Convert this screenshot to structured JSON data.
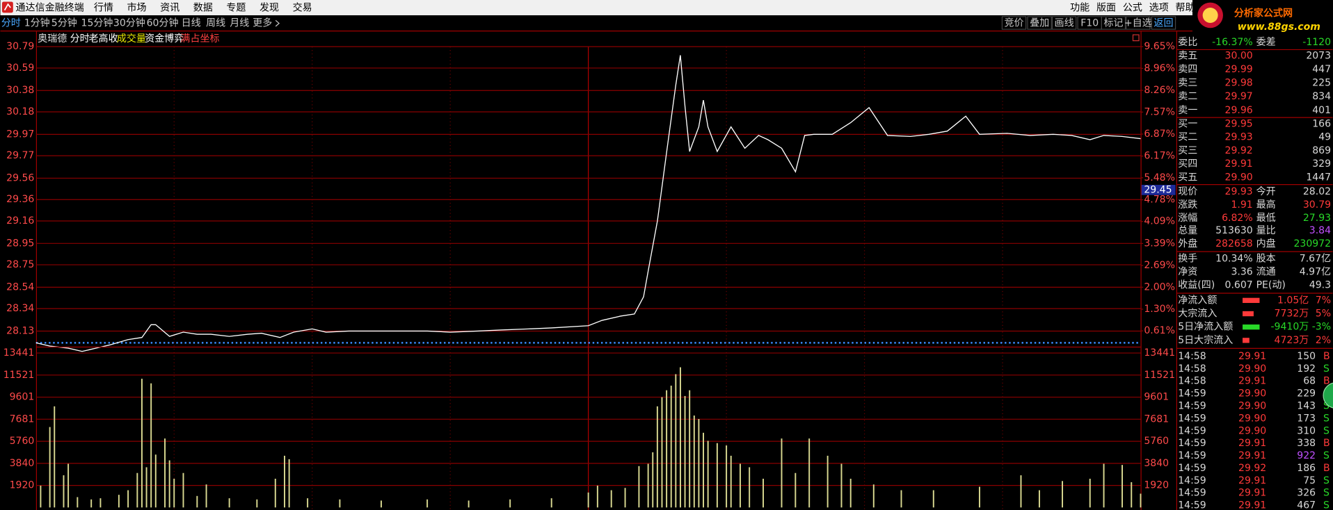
{
  "menu": {
    "app_title": "通达信金融终端",
    "items": [
      "行情",
      "市场",
      "资讯",
      "数据",
      "专题",
      "发现",
      "交易"
    ],
    "right_items": [
      "功能",
      "版面",
      "公式",
      "选项",
      "帮助"
    ],
    "watermark": {
      "name": "分析家公式网",
      "url": "www.88gs.com"
    }
  },
  "toolbar": {
    "periods": [
      "分时",
      "1分钟",
      "5分钟",
      "15分钟",
      "30分钟",
      "60分钟",
      "日线",
      "周线",
      "月线",
      "更多"
    ],
    "tools": [
      "竞价",
      "叠加",
      "画线",
      "F10",
      "标记",
      "+自选",
      "返回"
    ]
  },
  "chart": {
    "stock": "奥瑞德",
    "tabs": [
      "分时",
      "老高收",
      "成交量",
      "资金博弈",
      "满占坐标"
    ],
    "xlim": [
      0,
      240
    ],
    "ylim": [
      28.02,
      30.79
    ],
    "price_ticks": [
      30.79,
      30.59,
      30.38,
      30.18,
      29.97,
      29.77,
      29.56,
      29.36,
      29.16,
      28.95,
      28.75,
      28.54,
      28.34,
      28.13
    ],
    "y2lim": [
      0.23,
      9.65
    ],
    "pct_ticks": [
      {
        "value": 9.65,
        "label": "9.65%"
      },
      {
        "value": 8.96,
        "label": "8.96%"
      },
      {
        "value": 8.26,
        "label": "8.26%"
      },
      {
        "value": 7.57,
        "label": "7.57%"
      },
      {
        "value": 6.87,
        "label": "6.87%"
      },
      {
        "value": 6.17,
        "label": "6.17%"
      },
      {
        "value": 5.48,
        "label": "5.48%"
      },
      {
        "value": 4.78,
        "label": "4.78%"
      },
      {
        "value": 4.09,
        "label": "4.09%"
      },
      {
        "value": 3.39,
        "label": "3.39%"
      },
      {
        "value": 2.69,
        "label": "2.69%"
      },
      {
        "value": 2.0,
        "label": "2.00%"
      },
      {
        "value": 1.3,
        "label": "1.30%"
      },
      {
        "value": 0.61,
        "label": "0.61%"
      }
    ],
    "prev_close": 28.02,
    "cursor_price": 29.45,
    "price": {
      "color": "#ffffff",
      "x": [
        0,
        3,
        7,
        10,
        13,
        16,
        20,
        23,
        25,
        26,
        29,
        32,
        35,
        38,
        42,
        46,
        49,
        53,
        56,
        60,
        63,
        68,
        73,
        79,
        85,
        90,
        96,
        101,
        107,
        112,
        120,
        123,
        127,
        130,
        132,
        133,
        135,
        137,
        139,
        140,
        141,
        142,
        144,
        145,
        146,
        148,
        151,
        154,
        157,
        159,
        162,
        165,
        167,
        169,
        173,
        177,
        181,
        185,
        190,
        194,
        198,
        202,
        205,
        211,
        216,
        221,
        225,
        229,
        232,
        236,
        240
      ],
      "values": [
        28.02,
        27.99,
        27.97,
        27.94,
        27.97,
        28.0,
        28.05,
        28.07,
        28.19,
        28.19,
        28.08,
        28.12,
        28.1,
        28.1,
        28.08,
        28.1,
        28.11,
        28.07,
        28.12,
        28.15,
        28.12,
        28.13,
        28.13,
        28.13,
        28.13,
        28.12,
        28.13,
        28.14,
        28.15,
        28.16,
        28.18,
        28.23,
        28.27,
        28.29,
        28.45,
        28.69,
        29.16,
        29.8,
        30.43,
        30.71,
        30.23,
        29.81,
        30.04,
        30.29,
        30.04,
        29.81,
        30.04,
        29.84,
        29.96,
        29.92,
        29.84,
        29.62,
        29.96,
        29.97,
        29.97,
        30.08,
        30.22,
        29.96,
        29.95,
        29.97,
        30.0,
        30.14,
        29.97,
        29.98,
        29.96,
        29.97,
        29.96,
        29.92,
        29.96,
        29.95,
        29.93
      ]
    },
    "volume_ylim": [
      0,
      13441
    ],
    "volume_ticks": [
      13441,
      11521,
      9601,
      7681,
      5760,
      3840,
      1920
    ],
    "volume": {
      "color": "#d8d890",
      "x": [
        1,
        3,
        4,
        6,
        7,
        9,
        12,
        14,
        18,
        20,
        22,
        23,
        24,
        25,
        26,
        28,
        29,
        30,
        32,
        35,
        37,
        42,
        48,
        52,
        54,
        55,
        59,
        66,
        75,
        85,
        94,
        103,
        112,
        120,
        122,
        125,
        128,
        131,
        133,
        134,
        135,
        136,
        137,
        138,
        139,
        140,
        141,
        142,
        143,
        144,
        145,
        146,
        148,
        150,
        151,
        153,
        155,
        158,
        162,
        165,
        168,
        172,
        175,
        177,
        182,
        188,
        195,
        205,
        214,
        218,
        223,
        229,
        232,
        236,
        238,
        240
      ],
      "values": [
        1900,
        7000,
        8800,
        2800,
        3800,
        900,
        700,
        800,
        1100,
        1500,
        3000,
        11200,
        3500,
        10800,
        4600,
        6000,
        4100,
        2500,
        3000,
        1000,
        2000,
        800,
        700,
        2500,
        4500,
        4200,
        800,
        700,
        600,
        700,
        600,
        700,
        800,
        1300,
        1900,
        1500,
        1700,
        3600,
        3800,
        4800,
        8800,
        9600,
        10200,
        10600,
        11600,
        12200,
        9700,
        10200,
        8000,
        7700,
        6500,
        5800,
        5600,
        5400,
        4500,
        3800,
        3500,
        2500,
        6000,
        3000,
        6000,
        4500,
        3800,
        2500,
        2000,
        1500,
        1500,
        1800,
        2800,
        1500,
        2300,
        2500,
        3800,
        3700,
        2200,
        1200
      ]
    }
  },
  "quote": {
    "order_ratio": [
      "委比",
      "-16.37%",
      "委差",
      "-1120"
    ],
    "asks": [
      [
        "卖五",
        "30.00",
        "2073"
      ],
      [
        "卖四",
        "29.99",
        "447"
      ],
      [
        "卖三",
        "29.98",
        "225"
      ],
      [
        "卖二",
        "29.97",
        "834"
      ],
      [
        "卖一",
        "29.96",
        "401"
      ]
    ],
    "bids": [
      [
        "买一",
        "29.95",
        "166"
      ],
      [
        "买二",
        "29.93",
        "49"
      ],
      [
        "买三",
        "29.92",
        "869"
      ],
      [
        "买四",
        "29.91",
        "329"
      ],
      [
        "买五",
        "29.90",
        "1447"
      ]
    ],
    "stats": [
      [
        "现价",
        "29.93",
        "今开",
        "28.02"
      ],
      [
        "涨跌",
        "1.91",
        "最高",
        "30.79"
      ],
      [
        "涨幅",
        "6.82%",
        "最低",
        "27.93"
      ],
      [
        "总量",
        "513630",
        "量比",
        "3.84"
      ],
      [
        "外盘",
        "282658",
        "内盘",
        "230972"
      ],
      [
        "换手",
        "10.34%",
        "股本",
        "7.67亿"
      ],
      [
        "净资",
        "3.36",
        "流通",
        "4.97亿"
      ],
      [
        "收益(四)",
        "0.607",
        "PE(动)",
        "49.3"
      ]
    ],
    "flows": [
      [
        "净流入额",
        "1.05亿",
        "7%"
      ],
      [
        "大宗流入",
        "7732万",
        "5%"
      ],
      [
        "5日净流入额",
        "-9410万",
        "-3%"
      ],
      [
        "5日大宗流入",
        "4723万",
        "2%"
      ]
    ],
    "trades": [
      [
        "14:58",
        "29.91",
        "150",
        "B"
      ],
      [
        "14:58",
        "29.90",
        "192",
        "S"
      ],
      [
        "14:58",
        "29.91",
        "68",
        "B"
      ],
      [
        "14:59",
        "29.90",
        "229",
        "S"
      ],
      [
        "14:59",
        "29.90",
        "143",
        "S"
      ],
      [
        "14:59",
        "29.90",
        "173",
        "S"
      ],
      [
        "14:59",
        "29.90",
        "310",
        "S"
      ],
      [
        "14:59",
        "29.91",
        "338",
        "B"
      ],
      [
        "14:59",
        "29.91",
        "922",
        "S"
      ],
      [
        "14:59",
        "29.92",
        "186",
        "B"
      ],
      [
        "14:59",
        "29.91",
        "75",
        "S"
      ],
      [
        "14:59",
        "29.91",
        "326",
        "S"
      ],
      [
        "14:59",
        "29.91",
        "467",
        "S"
      ]
    ]
  }
}
